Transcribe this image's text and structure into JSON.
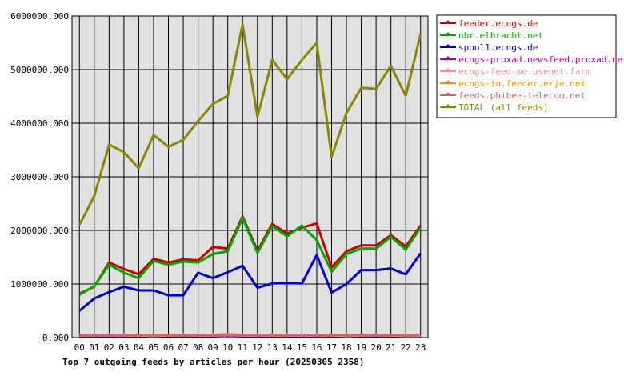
{
  "chart_data": {
    "type": "line",
    "caption": "Top 7 outgoing feeds by articles per hour (20250305 2358)",
    "categories": [
      "00",
      "01",
      "02",
      "03",
      "04",
      "05",
      "06",
      "07",
      "08",
      "09",
      "10",
      "11",
      "12",
      "13",
      "14",
      "15",
      "16",
      "17",
      "18",
      "19",
      "20",
      "21",
      "22",
      "23"
    ],
    "ylim": [
      0,
      6000000
    ],
    "yticks": [
      0,
      1000000,
      2000000,
      3000000,
      4000000,
      5000000,
      6000000
    ],
    "ytick_labels": [
      "0.000",
      "1000000.000",
      "2000000.000",
      "3000000.000",
      "4000000.000",
      "5000000.000",
      "6000000.000"
    ],
    "grid": true,
    "plot_background": "#e0e0e0",
    "legend_position": "right",
    "series": [
      {
        "name": "feeder.ecngs.de",
        "color": "#cc0000",
        "values": [
          820000,
          950000,
          1400000,
          1280000,
          1180000,
          1470000,
          1400000,
          1460000,
          1440000,
          1690000,
          1660000,
          2260000,
          1620000,
          2120000,
          1940000,
          2050000,
          2130000,
          1310000,
          1610000,
          1720000,
          1720000,
          1910000,
          1700000,
          2090000
        ]
      },
      {
        "name": "nbr.elbracht.net",
        "color": "#00aa00",
        "values": [
          800000,
          960000,
          1360000,
          1210000,
          1110000,
          1430000,
          1360000,
          1420000,
          1400000,
          1560000,
          1610000,
          2230000,
          1580000,
          2080000,
          1890000,
          2090000,
          1820000,
          1230000,
          1560000,
          1660000,
          1660000,
          1880000,
          1640000,
          2050000
        ]
      },
      {
        "name": "spool1.ecngs.de",
        "color": "#0000cc",
        "values": [
          500000,
          730000,
          850000,
          950000,
          880000,
          880000,
          790000,
          790000,
          1210000,
          1110000,
          1220000,
          1340000,
          930000,
          1010000,
          1020000,
          1010000,
          1540000,
          840000,
          1000000,
          1260000,
          1260000,
          1290000,
          1180000,
          1570000
        ]
      },
      {
        "name": "ecngs-proxad.newsfeed.proxad.net",
        "color": "#aa00aa",
        "values": [
          30000,
          30000,
          30000,
          30000,
          30000,
          20000,
          30000,
          30000,
          30000,
          30000,
          40000,
          30000,
          30000,
          30000,
          30000,
          30000,
          30000,
          30000,
          20000,
          30000,
          30000,
          30000,
          20000,
          20000
        ]
      },
      {
        "name": "ecngs-feed-me.usenet.farm",
        "color": "#ff8888",
        "values": [
          40000,
          40000,
          40000,
          40000,
          40000,
          30000,
          40000,
          40000,
          40000,
          40000,
          50000,
          40000,
          40000,
          40000,
          40000,
          40000,
          40000,
          40000,
          30000,
          40000,
          40000,
          40000,
          30000,
          30000
        ]
      },
      {
        "name": "ecngs-in.feeder.erje.net",
        "color": "#ff8800",
        "values": [
          50000,
          50000,
          50000,
          50000,
          50000,
          40000,
          50000,
          50000,
          50000,
          50000,
          60000,
          50000,
          50000,
          50000,
          50000,
          50000,
          50000,
          50000,
          40000,
          50000,
          50000,
          50000,
          40000,
          40000
        ]
      },
      {
        "name": "feeds.phibee-telecom.net",
        "color": "#cc6666",
        "values": [
          50000,
          50000,
          40000,
          50000,
          50000,
          40000,
          50000,
          40000,
          50000,
          50000,
          60000,
          50000,
          50000,
          50000,
          50000,
          50000,
          50000,
          50000,
          40000,
          50000,
          40000,
          50000,
          40000,
          40000
        ]
      },
      {
        "name": "TOTAL (all feeds)",
        "color": "#888800",
        "values": [
          2100000,
          2640000,
          3600000,
          3460000,
          3160000,
          3780000,
          3560000,
          3690000,
          4040000,
          4360000,
          4510000,
          5840000,
          4120000,
          5180000,
          4820000,
          5180000,
          5500000,
          3370000,
          4190000,
          4660000,
          4640000,
          5070000,
          4510000,
          5660000
        ]
      }
    ]
  }
}
